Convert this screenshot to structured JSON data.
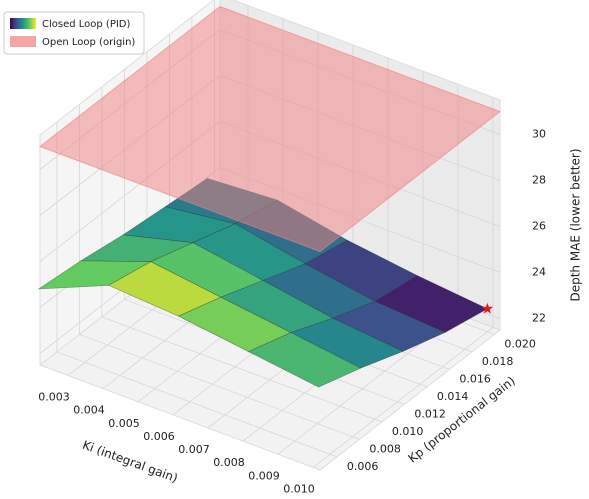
{
  "chart_data": {
    "type": "surface3d",
    "xlabel": "Ki (integral gain)",
    "ylabel": "Kp (proportional gain)",
    "zlabel": "Depth MAE (lower better)",
    "x": [
      0.002,
      0.004,
      0.006,
      0.008,
      0.01
    ],
    "y": [
      0.005,
      0.00875,
      0.0125,
      0.01625,
      0.02
    ],
    "z": [
      [
        24.5,
        25.8,
        25.6,
        25.2,
        24.8
      ],
      [
        24.3,
        25.4,
        25.0,
        24.6,
        24.2
      ],
      [
        24.0,
        24.8,
        24.3,
        23.8,
        23.5
      ],
      [
        23.8,
        24.2,
        23.6,
        23.1,
        22.9
      ],
      [
        23.6,
        23.8,
        23.2,
        22.8,
        22.5
      ]
    ],
    "colormap": "viridis",
    "open_loop_z": 31,
    "series": [
      {
        "name": "Closed Loop (PID)",
        "color": "viridis"
      },
      {
        "name": "Open Loop (origin)",
        "color": "#f08080"
      }
    ],
    "best_color": "#e41a1c",
    "xlim": [
      0.0022,
      0.0102
    ],
    "ylim": [
      0.0045,
      0.0205
    ],
    "zlim": [
      21.5,
      31.5
    ],
    "xticks": [
      0.003,
      0.004,
      0.005,
      0.006,
      0.007,
      0.008,
      0.009,
      {
        "value": 0.01,
        "label": "0.010"
      }
    ],
    "yticks": [
      0.006,
      0.008,
      {
        "value": 0.01,
        "label": "0.010"
      },
      0.012,
      0.014,
      0.016,
      0.018,
      {
        "value": 0.02,
        "label": "0.020"
      }
    ],
    "zticks": [
      22,
      24,
      26,
      28,
      30
    ],
    "grid": true,
    "legend": "upper left"
  }
}
